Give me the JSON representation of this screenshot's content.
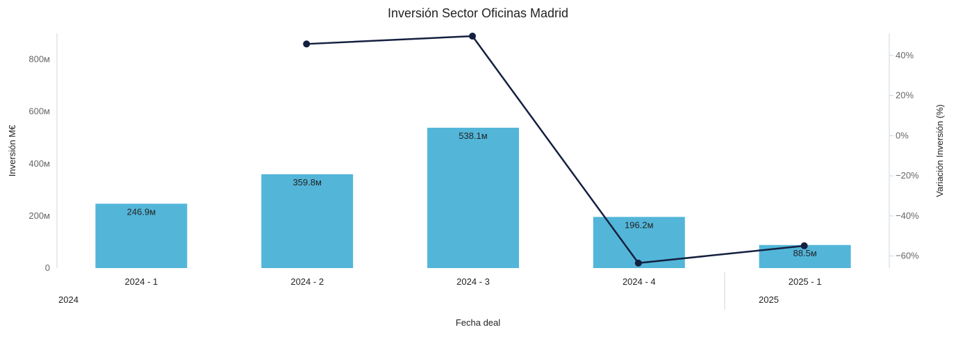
{
  "chart_data": {
    "type": "bar",
    "title": "Inversión Sector Oficinas Madrid",
    "xlabel": "Fecha deal",
    "ylabel": "Inversión M€",
    "y2label": "Variación Inversión (%)",
    "categories": [
      "2024 - 1",
      "2024 - 2",
      "2024 - 3",
      "2024 - 4",
      "2025 - 1"
    ],
    "groups": [
      {
        "label": "2024",
        "categories": [
          "2024 - 1",
          "2024 - 2",
          "2024 - 3",
          "2024 - 4"
        ]
      },
      {
        "label": "2025",
        "categories": [
          "2025 - 1"
        ]
      }
    ],
    "series": [
      {
        "type": "bar",
        "axis": "left",
        "color": "#53B6D9",
        "values": [
          246.9,
          359.8,
          538.1,
          196.2,
          88.5
        ],
        "labels": [
          "246.9м",
          "359.8м",
          "538.1м",
          "196.2м",
          "88.5м"
        ]
      },
      {
        "type": "line",
        "axis": "right",
        "color": "#13203F",
        "values": [
          null,
          45.7,
          49.6,
          -63.5,
          -54.9
        ]
      }
    ],
    "ylim": [
      0,
      900
    ],
    "yticks": [
      {
        "value": 0,
        "label": "0"
      },
      {
        "value": 200,
        "label": "200м"
      },
      {
        "value": 400,
        "label": "400м"
      },
      {
        "value": 600,
        "label": "600м"
      },
      {
        "value": 800,
        "label": "800м"
      }
    ],
    "y2lim": [
      -66,
      51
    ],
    "y2ticks": [
      {
        "value": 40,
        "label": "40%"
      },
      {
        "value": 20,
        "label": "20%"
      },
      {
        "value": 0,
        "label": "0%"
      },
      {
        "value": -20,
        "label": "−20%"
      },
      {
        "value": -40,
        "label": "−40%"
      },
      {
        "value": -60,
        "label": "−60%"
      }
    ],
    "grid": false,
    "legend": "none"
  }
}
